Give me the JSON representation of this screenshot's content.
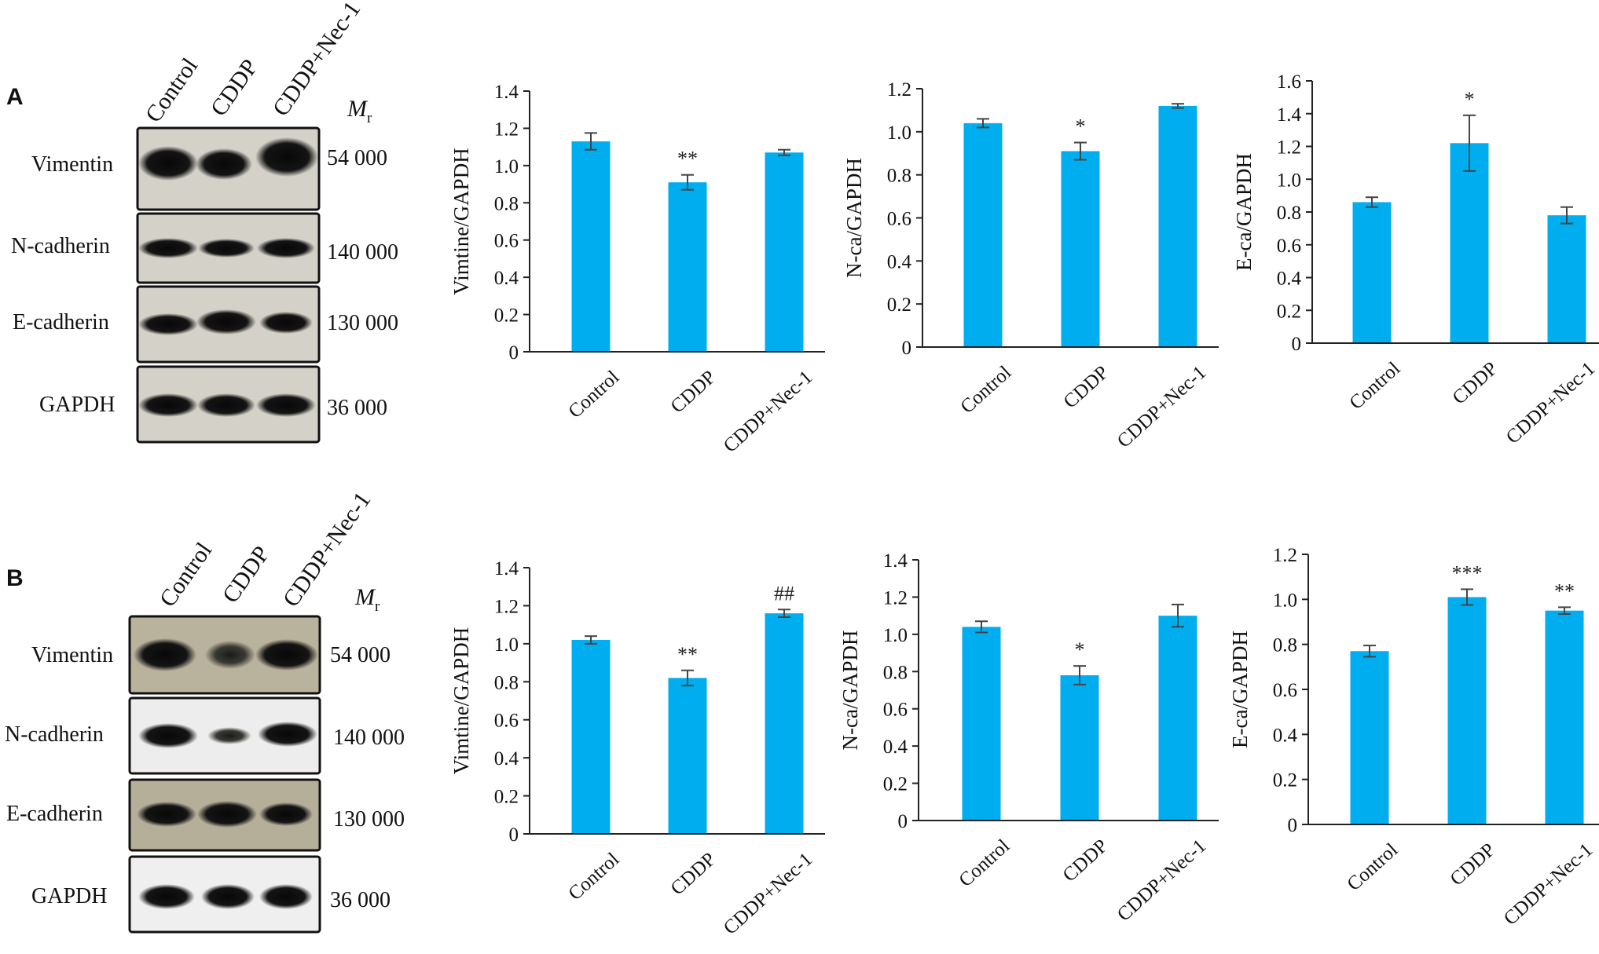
{
  "panels": [
    {
      "letter": "A",
      "blot": {
        "lanes": [
          "Control",
          "CDDP",
          "CDDP+Nec-1"
        ],
        "mr_symbol": "M",
        "mr_subscript": "r",
        "rows": [
          {
            "protein": "Vimentin",
            "mw": "54 000"
          },
          {
            "protein": "N-cadherin",
            "mw": "140 000"
          },
          {
            "protein": "E-cadherin",
            "mw": "130 000"
          },
          {
            "protein": "GAPDH",
            "mw": "36 000"
          }
        ]
      }
    },
    {
      "letter": "B",
      "blot": {
        "lanes": [
          "Control",
          "CDDP",
          "CDDP+Nec-1"
        ],
        "mr_symbol": "M",
        "mr_subscript": "r",
        "rows": [
          {
            "protein": "Vimentin",
            "mw": "54 000"
          },
          {
            "protein": "N-cadherin",
            "mw": "140 000"
          },
          {
            "protein": "E-cadherin",
            "mw": "130 000"
          },
          {
            "protein": "GAPDH",
            "mw": "36 000"
          }
        ]
      }
    }
  ],
  "chart_data": [
    {
      "panel": "A",
      "type": "bar",
      "categories": [
        "Control",
        "CDDP",
        "CDDP+Nec-1"
      ],
      "values": [
        1.13,
        0.91,
        1.07
      ],
      "errors": [
        0.045,
        0.04,
        0.015
      ],
      "annotations": [
        "",
        "**",
        ""
      ],
      "ylabel": "Vimtine/GAPDH",
      "ylim": [
        0,
        1.4
      ],
      "yticks": [
        0,
        0.2,
        0.4,
        0.6,
        0.8,
        1.0,
        1.2,
        1.4
      ],
      "ytick_labels": [
        "0",
        "0.2",
        "0.4",
        "0.6",
        "0.8",
        "1.0",
        "1.2",
        "1.4"
      ],
      "color": "#00aeef"
    },
    {
      "panel": "A",
      "type": "bar",
      "categories": [
        "Control",
        "CDDP",
        "CDDP+Nec-1"
      ],
      "values": [
        1.04,
        0.91,
        1.12
      ],
      "errors": [
        0.02,
        0.04,
        0.01
      ],
      "annotations": [
        "",
        "*",
        ""
      ],
      "ylabel": "N-ca/GAPDH",
      "ylim": [
        0,
        1.2
      ],
      "yticks": [
        0,
        0.2,
        0.4,
        0.6,
        0.8,
        1.0,
        1.2
      ],
      "ytick_labels": [
        "0",
        "0.2",
        "0.4",
        "0.6",
        "0.8",
        "1.0",
        "1.2"
      ],
      "color": "#00aeef"
    },
    {
      "panel": "A",
      "type": "bar",
      "categories": [
        "Control",
        "CDDP",
        "CDDP+Nec-1"
      ],
      "values": [
        0.86,
        1.22,
        0.78
      ],
      "errors": [
        0.03,
        0.17,
        0.05
      ],
      "annotations": [
        "",
        "*",
        ""
      ],
      "ylabel": "E-ca/GAPDH",
      "ylim": [
        0,
        1.6
      ],
      "yticks": [
        0,
        0.2,
        0.4,
        0.6,
        0.8,
        1.0,
        1.2,
        1.4,
        1.6
      ],
      "ytick_labels": [
        "0",
        "0.2",
        "0.4",
        "0.6",
        "0.8",
        "1.0",
        "1.2",
        "1.4",
        "1.6"
      ],
      "color": "#00aeef"
    },
    {
      "panel": "B",
      "type": "bar",
      "categories": [
        "Control",
        "CDDP",
        "CDDP+Nec-1"
      ],
      "values": [
        1.02,
        0.82,
        1.16
      ],
      "errors": [
        0.02,
        0.04,
        0.02
      ],
      "annotations": [
        "",
        "**",
        "##"
      ],
      "ylabel": "Vimtine/GAPDH",
      "ylim": [
        0,
        1.4
      ],
      "yticks": [
        0,
        0.2,
        0.4,
        0.6,
        0.8,
        1.0,
        1.2,
        1.4
      ],
      "ytick_labels": [
        "0",
        "0.2",
        "0.4",
        "0.6",
        "0.8",
        "1.0",
        "1.2",
        "1.4"
      ],
      "color": "#00aeef"
    },
    {
      "panel": "B",
      "type": "bar",
      "categories": [
        "Control",
        "CDDP",
        "CDDP+Nec-1"
      ],
      "values": [
        1.04,
        0.78,
        1.1
      ],
      "errors": [
        0.03,
        0.05,
        0.06
      ],
      "annotations": [
        "",
        "*",
        ""
      ],
      "ylabel": "N-ca/GAPDH",
      "ylim": [
        0,
        1.4
      ],
      "yticks": [
        0,
        0.2,
        0.4,
        0.6,
        0.8,
        1.0,
        1.2,
        1.4
      ],
      "ytick_labels": [
        "0",
        "0.2",
        "0.4",
        "0.6",
        "0.8",
        "1.0",
        "1.2",
        "1.4"
      ],
      "color": "#00aeef"
    },
    {
      "panel": "B",
      "type": "bar",
      "categories": [
        "Control",
        "CDDP",
        "CDDP+Nec-1"
      ],
      "values": [
        0.77,
        1.01,
        0.95
      ],
      "errors": [
        0.025,
        0.035,
        0.015
      ],
      "annotations": [
        "",
        "***",
        "**"
      ],
      "ylabel": "E-ca/GAPDH",
      "ylim": [
        0,
        1.2
      ],
      "yticks": [
        0,
        0.2,
        0.4,
        0.6,
        0.8,
        1.0,
        1.2
      ],
      "ytick_labels": [
        "0",
        "0.2",
        "0.4",
        "0.6",
        "0.8",
        "1.0",
        "1.2"
      ],
      "color": "#00aeef"
    }
  ]
}
